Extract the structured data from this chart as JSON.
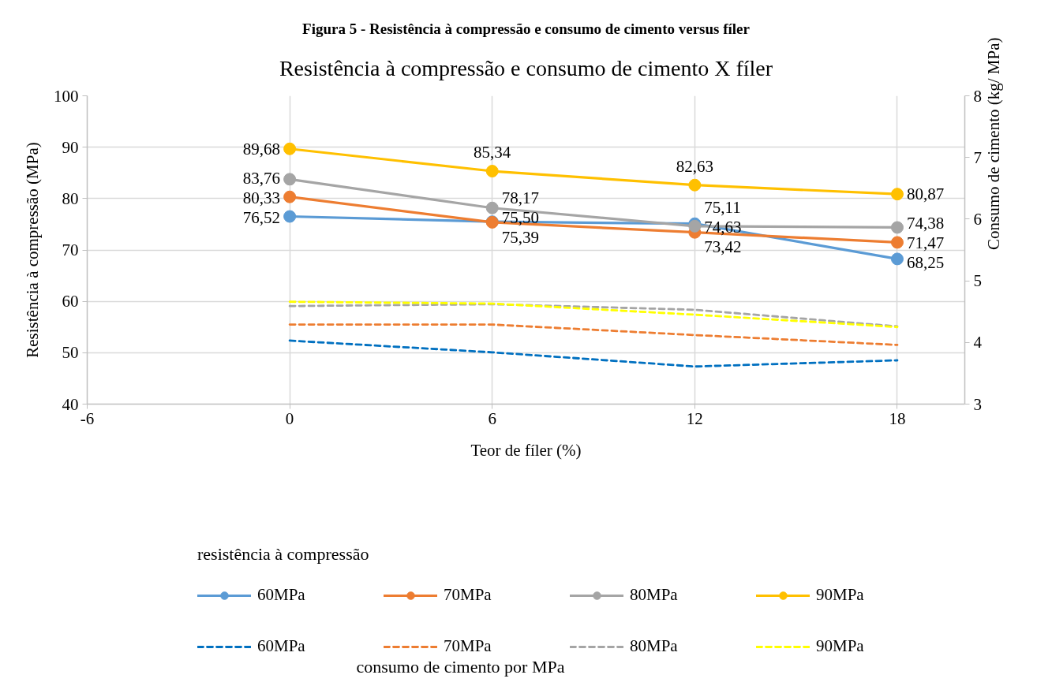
{
  "chart_data": {
    "type": "line",
    "title": "Resistência à compressão e consumo de cimento X fíler",
    "xlabel": "Teor de fíler (%)",
    "ylabel": "Resistência à compressão (MPa)",
    "y2label": "Consumo de cimento (kg/ MPa)",
    "legend_title": "resistência à compressão",
    "annotations": [
      "Figura 5 - Resistência à compressão e consumo de cimento versus fíler",
      "consumo de cimento por MPa"
    ],
    "x": [
      0,
      6,
      12,
      18
    ],
    "xlim": [
      -6,
      20
    ],
    "xticks": [
      -6,
      0,
      6,
      12,
      18
    ],
    "ylim": [
      40,
      100
    ],
    "yticks": [
      40,
      50,
      60,
      70,
      80,
      90,
      100
    ],
    "y2lim": [
      3,
      8
    ],
    "y2ticks": [
      3,
      4,
      5,
      6,
      7,
      8
    ],
    "grid": true,
    "legend": "bottom",
    "series": [
      {
        "name": "60MPa",
        "color": "#5b9bd5",
        "values": [
          76.52,
          75.5,
          75.11,
          68.25
        ],
        "value_labels": [
          "76,52",
          "75,50",
          "75,11",
          "68,25"
        ],
        "marker": "circle",
        "line_style": "solid"
      },
      {
        "name": "70MPa",
        "color": "#ed7d31",
        "values": [
          80.33,
          75.39,
          73.42,
          71.47
        ],
        "value_labels": [
          "80,33",
          "75,39",
          "73,42",
          "71,47"
        ],
        "marker": "circle",
        "line_style": "solid"
      },
      {
        "name": "80MPa",
        "color": "#a5a5a5",
        "values": [
          83.76,
          78.17,
          74.63,
          74.38
        ],
        "value_labels": [
          "83,76",
          "78,17",
          "74,63",
          "74,38"
        ],
        "marker": "circle",
        "line_style": "solid"
      },
      {
        "name": "90MPa",
        "color": "#ffc000",
        "values": [
          89.68,
          85.34,
          82.63,
          80.87
        ],
        "value_labels": [
          "89,68",
          "85,34",
          "82,63",
          "80,87"
        ],
        "marker": "circle",
        "line_style": "solid"
      },
      {
        "name": "60MPa",
        "color": "#0070c0",
        "axis": "y2",
        "values": [
          4.03,
          3.84,
          3.61,
          3.71
        ],
        "marker": "none",
        "line_style": "dashed"
      },
      {
        "name": "70MPa",
        "color": "#ed7d31",
        "axis": "y2",
        "values": [
          4.29,
          4.29,
          4.12,
          3.96
        ],
        "marker": "none",
        "line_style": "dashed"
      },
      {
        "name": "80MPa",
        "color": "#a5a5a5",
        "axis": "y2",
        "values": [
          4.59,
          4.62,
          4.53,
          4.26
        ],
        "marker": "none",
        "line_style": "dashed"
      },
      {
        "name": "90MPa",
        "color": "#ffff00",
        "axis": "y2",
        "values": [
          4.66,
          4.63,
          4.45,
          4.25
        ],
        "marker": "none",
        "line_style": "dashed"
      }
    ]
  }
}
